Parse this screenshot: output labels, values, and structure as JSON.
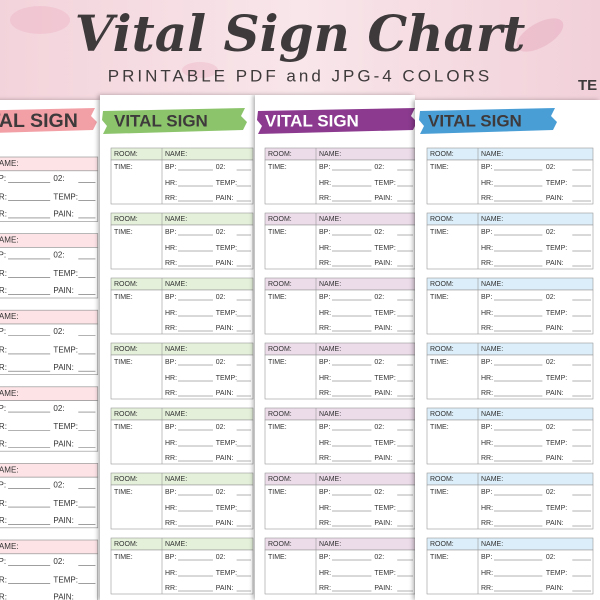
{
  "header": {
    "title": "Vital Sign Chart",
    "subtitle": "PRINTABLE PDF and JPG-4 COLORS",
    "corner_text": "TE"
  },
  "sheets": [
    {
      "heading": "VITAL SIGN"
    },
    {
      "heading": "VITAL SIGN"
    },
    {
      "heading": "VITAL SIGN"
    },
    {
      "heading": "VITAL SIGN"
    }
  ],
  "form": {
    "room": "ROOM:",
    "name": "NAME:",
    "time": "TIME:",
    "bp": "BP:",
    "o2": "02:",
    "hr": "HR:",
    "temp": "TEMP:",
    "rr": "RR:",
    "pain": "PAIN:"
  }
}
